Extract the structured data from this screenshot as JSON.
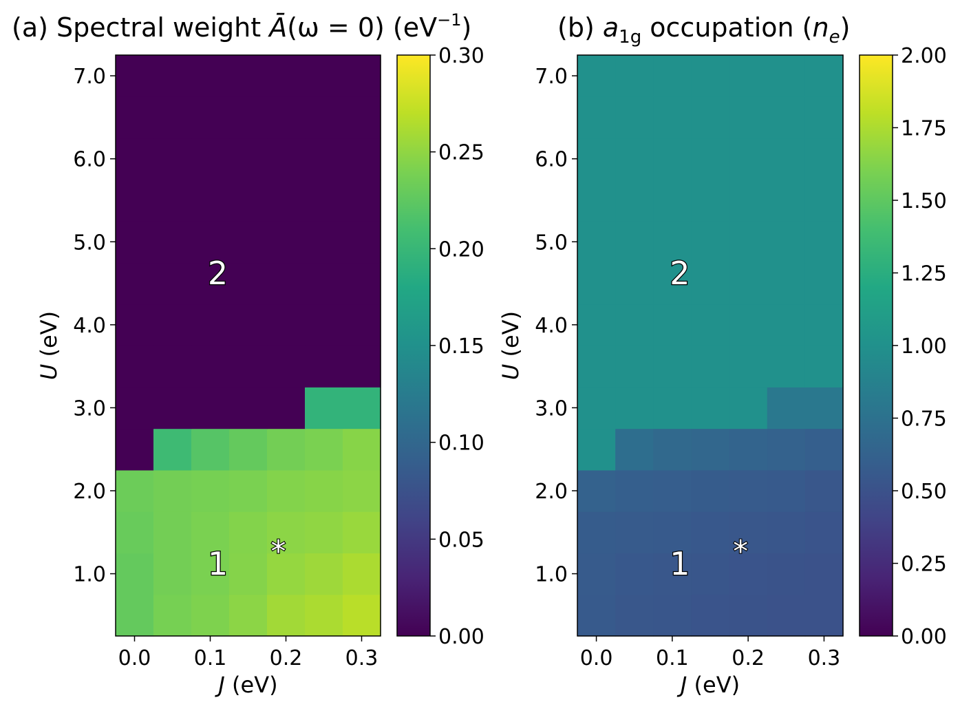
{
  "chart_data": [
    {
      "type": "heatmap",
      "title_prefix": "(a) Spectral weight ",
      "title_symbol": "Ā",
      "title_mid": "(ω = 0) (eV",
      "title_sup": "−1",
      "title_suffix": ")",
      "xlabel": "J",
      "xlabel_unit": " (eV)",
      "ylabel": "U",
      "ylabel_unit": " (eV)",
      "x": [
        0.0,
        0.05,
        0.1,
        0.15,
        0.2,
        0.25,
        0.3
      ],
      "y": [
        0.5,
        1.0,
        1.5,
        2.0,
        2.5,
        3.0,
        3.5,
        4.0,
        4.5,
        5.0,
        5.5,
        6.0,
        6.5,
        7.0
      ],
      "xlim": [
        -0.025,
        0.325
      ],
      "ylim": [
        0.25,
        7.25
      ],
      "xticks": [
        "0.0",
        "0.1",
        "0.2",
        "0.3"
      ],
      "yticks": [
        "1.0",
        "2.0",
        "3.0",
        "4.0",
        "5.0",
        "6.0",
        "7.0"
      ],
      "z": [
        [
          0.228,
          0.238,
          0.242,
          0.248,
          0.258,
          0.262,
          0.268
        ],
        [
          0.228,
          0.236,
          0.24,
          0.245,
          0.252,
          0.256,
          0.262
        ],
        [
          0.23,
          0.236,
          0.24,
          0.244,
          0.248,
          0.25,
          0.254
        ],
        [
          0.232,
          0.236,
          0.238,
          0.24,
          0.244,
          0.246,
          0.248
        ],
        [
          0.0,
          0.205,
          0.22,
          0.228,
          0.236,
          0.24,
          0.246
        ],
        [
          0.0,
          0.0,
          0.0,
          0.0,
          0.0,
          0.195,
          0.195
        ],
        [
          0.0,
          0.0,
          0.0,
          0.0,
          0.0,
          0.0,
          0.0
        ],
        [
          0.0,
          0.0,
          0.0,
          0.0,
          0.0,
          0.0,
          0.0
        ],
        [
          0.0,
          0.0,
          0.0,
          0.0,
          0.0,
          0.0,
          0.0
        ],
        [
          0.0,
          0.0,
          0.0,
          0.0,
          0.0,
          0.0,
          0.0
        ],
        [
          0.0,
          0.0,
          0.0,
          0.0,
          0.0,
          0.0,
          0.0
        ],
        [
          0.0,
          0.0,
          0.0,
          0.0,
          0.0,
          0.0,
          0.0
        ],
        [
          0.0,
          0.0,
          0.0,
          0.0,
          0.0,
          0.0,
          0.0
        ],
        [
          0.0,
          0.0,
          0.0,
          0.0,
          0.0,
          0.0,
          0.0
        ]
      ],
      "colorbar": {
        "min": 0.0,
        "max": 0.3,
        "ticks": [
          "0.00",
          "0.05",
          "0.10",
          "0.15",
          "0.20",
          "0.25",
          "0.30"
        ],
        "colormap": "viridis"
      },
      "annotations": [
        {
          "text": "2",
          "x": 0.11,
          "y": 4.62
        },
        {
          "text": "1",
          "x": 0.11,
          "y": 1.12
        },
        {
          "text": "*",
          "x": 0.19,
          "y": 1.38
        }
      ]
    },
    {
      "type": "heatmap",
      "title_prefix": "(b) ",
      "title_symbol": "a",
      "title_sub": "1g",
      "title_mid": " occupation (",
      "title_symbol2": "n",
      "title_sub2": "e",
      "title_suffix": ")",
      "xlabel": "J",
      "xlabel_unit": " (eV)",
      "ylabel": "U",
      "ylabel_unit": " (eV)",
      "x": [
        0.0,
        0.05,
        0.1,
        0.15,
        0.2,
        0.25,
        0.3
      ],
      "y": [
        0.5,
        1.0,
        1.5,
        2.0,
        2.5,
        3.0,
        3.5,
        4.0,
        4.5,
        5.0,
        5.5,
        6.0,
        6.5,
        7.0
      ],
      "xlim": [
        -0.025,
        0.325
      ],
      "ylim": [
        0.25,
        7.25
      ],
      "xticks": [
        "0.0",
        "0.1",
        "0.2",
        "0.3"
      ],
      "yticks": [
        "1.0",
        "2.0",
        "3.0",
        "4.0",
        "5.0",
        "6.0",
        "7.0"
      ],
      "z": [
        [
          0.56,
          0.54,
          0.53,
          0.52,
          0.51,
          0.5,
          0.5
        ],
        [
          0.57,
          0.55,
          0.54,
          0.53,
          0.52,
          0.51,
          0.5
        ],
        [
          0.58,
          0.57,
          0.56,
          0.55,
          0.54,
          0.53,
          0.52
        ],
        [
          0.62,
          0.6,
          0.59,
          0.58,
          0.57,
          0.56,
          0.54
        ],
        [
          1.0,
          0.72,
          0.68,
          0.66,
          0.64,
          0.62,
          0.6
        ],
        [
          1.0,
          1.0,
          1.0,
          1.0,
          1.0,
          0.8,
          0.8
        ],
        [
          1.0,
          1.0,
          1.0,
          1.0,
          1.0,
          1.0,
          1.0
        ],
        [
          1.0,
          1.0,
          1.0,
          1.0,
          1.0,
          1.0,
          1.0
        ],
        [
          1.0,
          1.0,
          1.0,
          1.0,
          1.0,
          1.0,
          1.0
        ],
        [
          1.0,
          1.0,
          1.0,
          1.0,
          1.0,
          1.0,
          1.0
        ],
        [
          1.0,
          1.0,
          1.0,
          1.0,
          1.0,
          1.0,
          1.0
        ],
        [
          1.0,
          1.0,
          1.0,
          1.0,
          1.0,
          1.0,
          1.0
        ],
        [
          1.0,
          1.0,
          1.0,
          1.0,
          1.0,
          1.0,
          1.0
        ],
        [
          1.0,
          1.0,
          1.0,
          1.0,
          1.0,
          1.0,
          1.0
        ]
      ],
      "colorbar": {
        "min": 0.0,
        "max": 2.0,
        "ticks": [
          "0.00",
          "0.25",
          "0.50",
          "0.75",
          "1.00",
          "1.25",
          "1.50",
          "1.75",
          "2.00"
        ],
        "colormap": "viridis"
      },
      "annotations": [
        {
          "text": "2",
          "x": 0.11,
          "y": 4.62
        },
        {
          "text": "1",
          "x": 0.11,
          "y": 1.12
        },
        {
          "text": "*",
          "x": 0.19,
          "y": 1.38
        }
      ]
    }
  ]
}
